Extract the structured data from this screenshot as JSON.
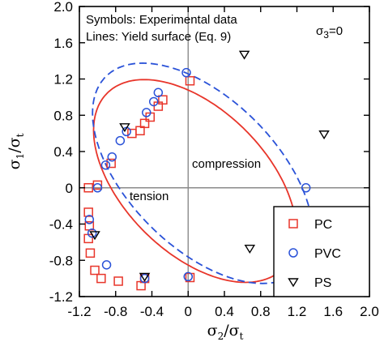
{
  "chart_data": {
    "type": "scatter",
    "xlabel": {
      "base": "σ",
      "sub": "2",
      "sep": "/",
      "base2": "σ",
      "sub2": "t"
    },
    "ylabel": {
      "base": "σ",
      "sub": "1",
      "sep": "/",
      "base2": "σ",
      "sub2": "t"
    },
    "xlim": [
      -1.2,
      2.0
    ],
    "ylim": [
      -1.2,
      2.0
    ],
    "xticks": [
      "-1.2",
      "-0.8",
      "-0.4",
      "0",
      "0.4",
      "0.8",
      "1.2",
      "1.6",
      "2.0"
    ],
    "yticks": [
      "2.0",
      "1.6",
      "1.2",
      "0.8",
      "0.4",
      "0",
      "-0.4",
      "-0.8",
      "-1.2"
    ],
    "xtick_values": [
      -1.2,
      -0.8,
      -0.4,
      0,
      0.4,
      0.8,
      1.2,
      1.6,
      2.0
    ],
    "ytick_values": [
      2.0,
      1.6,
      1.2,
      0.8,
      0.4,
      0,
      -0.4,
      -0.8,
      -1.2
    ],
    "annotations": {
      "line1": "Symbols: Experimental data",
      "line2": "Lines: Yield surface (Eq. 9)",
      "sigma3_base": "σ",
      "sigma3_sub": "3",
      "sigma3_rest": "=0",
      "compression": "compression",
      "tension": "tension"
    },
    "colors": {
      "PC": "#e8352a",
      "PVC": "#2a52d8",
      "PS": "#000000"
    },
    "series": [
      {
        "name": "PC",
        "marker": "square",
        "points": [
          [
            0.02,
            1.18
          ],
          [
            -0.28,
            0.97
          ],
          [
            -0.33,
            0.9
          ],
          [
            -0.42,
            0.78
          ],
          [
            -0.48,
            0.71
          ],
          [
            -0.53,
            0.63
          ],
          [
            -0.62,
            0.6
          ],
          [
            -0.85,
            0.27
          ],
          [
            -1.0,
            0.03
          ],
          [
            -1.1,
            0.0
          ],
          [
            -1.1,
            -0.27
          ],
          [
            -1.09,
            -0.42
          ],
          [
            -1.1,
            -0.56
          ],
          [
            -1.08,
            -0.72
          ],
          [
            -1.03,
            -0.91
          ],
          [
            -0.96,
            -1.0
          ],
          [
            -0.77,
            -1.03
          ],
          [
            -0.52,
            -1.08
          ],
          [
            -0.48,
            -1.0
          ],
          [
            0.02,
            -0.99
          ]
        ]
      },
      {
        "name": "PVC",
        "marker": "circle",
        "points": [
          [
            -0.02,
            1.27
          ],
          [
            -0.33,
            1.05
          ],
          [
            -0.38,
            0.95
          ],
          [
            -0.46,
            0.83
          ],
          [
            -0.68,
            0.62
          ],
          [
            -0.75,
            0.52
          ],
          [
            -0.84,
            0.34
          ],
          [
            -0.91,
            0.25
          ],
          [
            -1.0,
            0.0
          ],
          [
            -1.09,
            -0.35
          ],
          [
            -1.06,
            -0.5
          ],
          [
            -0.9,
            -0.85
          ],
          [
            -0.48,
            -1.0
          ],
          [
            0.0,
            -0.98
          ],
          [
            1.3,
            0.0
          ]
        ]
      },
      {
        "name": "PS",
        "marker": "triangle",
        "points": [
          [
            0.62,
            1.47
          ],
          [
            1.5,
            0.59
          ],
          [
            0.68,
            -0.67
          ],
          [
            -0.48,
            -0.98
          ],
          [
            -1.03,
            -0.52
          ],
          [
            -0.7,
            0.67
          ]
        ]
      }
    ],
    "curves": [
      {
        "series": "PC",
        "style": "solid",
        "center": [
          0.075,
          0.075
        ],
        "a": 1.37,
        "b": 0.79,
        "angle": -45
      },
      {
        "series": "PVC",
        "style": "dashed",
        "center": [
          0.16,
          0.16
        ],
        "a": 1.51,
        "b": 0.82,
        "angle": -45
      }
    ],
    "legend": {
      "position": "bottom-right",
      "entries": [
        "PC",
        "PVC",
        "PS"
      ]
    },
    "reference_lines": {
      "x": 0,
      "y": 0
    }
  }
}
